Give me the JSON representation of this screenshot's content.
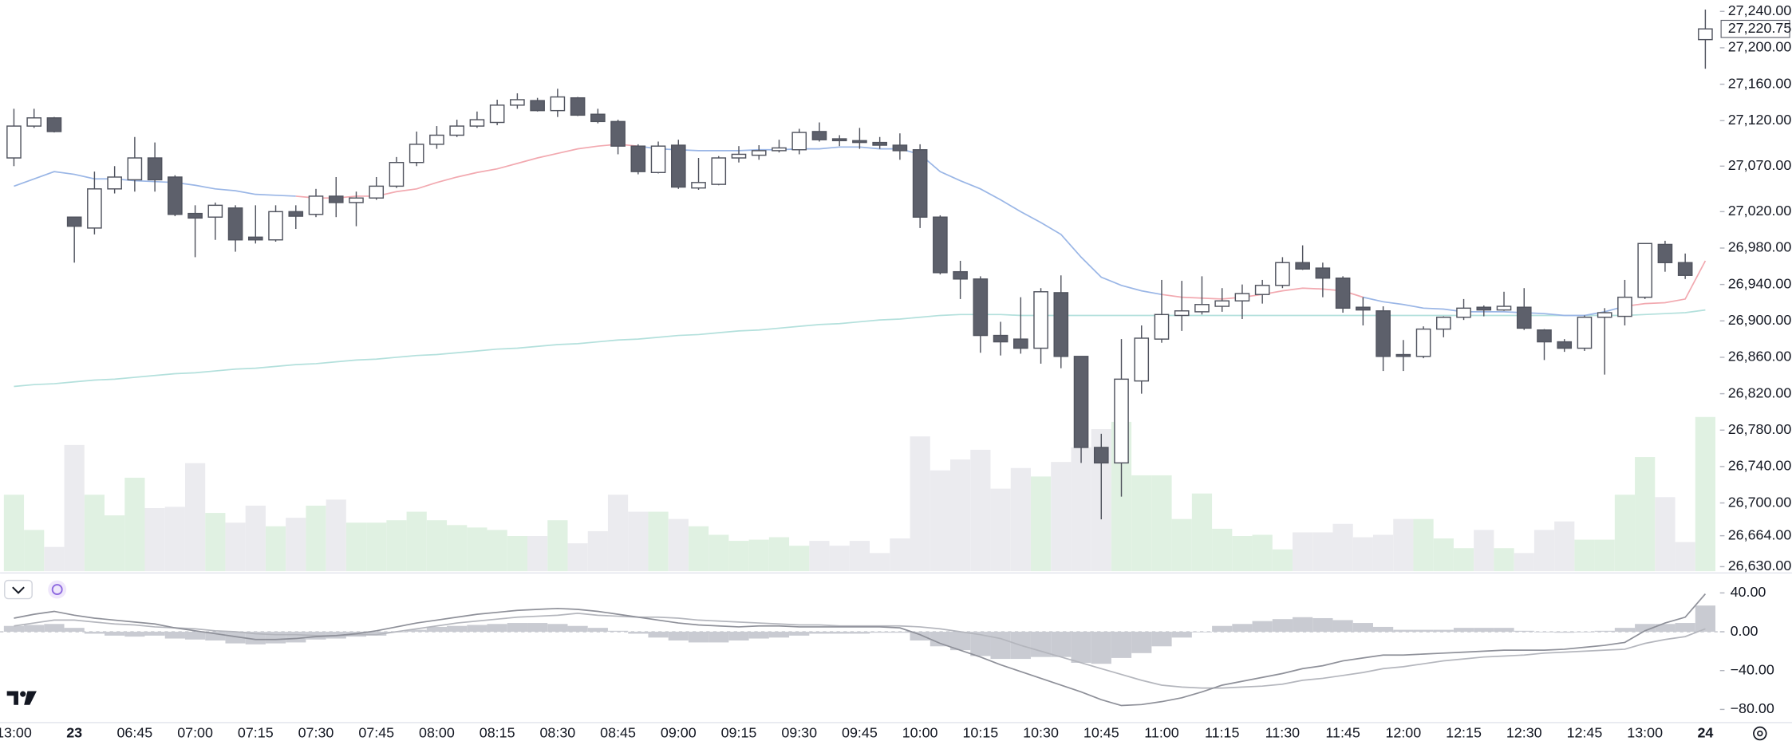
{
  "chart_data": {
    "type": "candlestick",
    "categories": [
      "13:00",
      null,
      null,
      "23",
      null,
      null,
      "06:45",
      null,
      null,
      "07:00",
      null,
      null,
      "07:15",
      null,
      null,
      "07:30",
      null,
      null,
      "07:45",
      null,
      null,
      "08:00",
      null,
      null,
      "08:15",
      null,
      null,
      "08:30",
      null,
      null,
      "08:45",
      null,
      null,
      "09:00",
      null,
      null,
      "09:15",
      null,
      null,
      "09:30",
      null,
      null,
      "09:45",
      null,
      null,
      "10:00",
      null,
      null,
      "10:15",
      null,
      null,
      "10:30",
      null,
      null,
      "10:45",
      null,
      null,
      "11:00",
      null,
      null,
      "11:15",
      null,
      null,
      "11:30",
      null,
      null,
      "11:45",
      null,
      null,
      "12:00",
      null,
      null,
      "12:15",
      null,
      null,
      "12:30",
      null,
      null,
      "12:45",
      null,
      null,
      "13:00",
      null,
      null,
      "24"
    ],
    "bold_categories": [
      "23",
      "24"
    ],
    "open": [
      27079,
      27114,
      27123,
      27014,
      27002,
      27045,
      27055,
      27079,
      27058,
      27018,
      27014,
      27024,
      26992,
      26989,
      27020,
      27017,
      27037,
      27030,
      27035,
      27048,
      27074,
      27094,
      27104,
      27114,
      27118,
      27137,
      27142,
      27131,
      27145,
      27127,
      27119,
      27092,
      27063,
      27093,
      27046,
      27050,
      27079,
      27082,
      27087,
      27088,
      27108,
      27100,
      27098,
      27096,
      27093,
      27088,
      27014,
      26954,
      26946,
      26884,
      26880,
      26870,
      26931,
      26861,
      26761,
      26744,
      26834,
      26880,
      26906,
      26910,
      26916,
      26922,
      26929,
      26939,
      26964,
      26958,
      26947,
      26915,
      26911,
      26863,
      26861,
      26891,
      26904,
      26915,
      26912,
      26915,
      26890,
      26877,
      26870,
      26904,
      26905,
      26926,
      26984,
      26964,
      27209
    ],
    "high": [
      27133,
      27133,
      27124,
      27014,
      27064,
      27070,
      27102,
      27096,
      27060,
      27027,
      27030,
      27027,
      27027,
      27027,
      27027,
      27045,
      27058,
      27042,
      27058,
      27080,
      27108,
      27114,
      27121,
      27130,
      27143,
      27150,
      27145,
      27155,
      27146,
      27133,
      27121,
      27094,
      27097,
      27099,
      27079,
      27081,
      27092,
      27093,
      27099,
      27111,
      27118,
      27104,
      27112,
      27102,
      27106,
      27094,
      27016,
      26966,
      26949,
      26899,
      26926,
      26936,
      26950,
      26861,
      26776,
      26880,
      26895,
      26945,
      26944,
      26949,
      26936,
      26940,
      26945,
      26970,
      26983,
      26964,
      26949,
      26926,
      26916,
      26879,
      26894,
      26905,
      26924,
      26917,
      26932,
      26936,
      26891,
      26880,
      26906,
      26914,
      26945,
      26985,
      26988,
      26974,
      27242
    ],
    "low": [
      27070,
      27112,
      27107,
      26964,
      26995,
      27040,
      27042,
      27042,
      27015,
      26970,
      26989,
      26976,
      26985,
      26987,
      27001,
      27014,
      27014,
      27004,
      27033,
      27046,
      27070,
      27089,
      27102,
      27112,
      27115,
      27133,
      27130,
      27124,
      27125,
      27117,
      27083,
      27061,
      27062,
      27045,
      27044,
      27049,
      27074,
      27077,
      27085,
      27083,
      27097,
      27092,
      27089,
      27089,
      27077,
      27002,
      26951,
      26924,
      26865,
      26862,
      26864,
      26853,
      26848,
      26744,
      26682,
      26707,
      26820,
      26876,
      26889,
      26907,
      26910,
      26902,
      26919,
      26936,
      26956,
      26926,
      26909,
      26895,
      26845,
      26845,
      26859,
      26882,
      26901,
      26905,
      26911,
      26890,
      26857,
      26866,
      26867,
      26841,
      26895,
      26924,
      26954,
      26946,
      27177
    ],
    "close": [
      27114,
      27123,
      27108,
      27004,
      27045,
      27058,
      27079,
      27055,
      27017,
      27013,
      27027,
      26989,
      26989,
      27020,
      27015,
      27037,
      27030,
      27035,
      27048,
      27074,
      27094,
      27104,
      27114,
      27121,
      27137,
      27143,
      27131,
      27146,
      27126,
      27119,
      27092,
      27064,
      27092,
      27047,
      27052,
      27079,
      27083,
      27087,
      27090,
      27107,
      27099,
      27098,
      27096,
      27093,
      27087,
      27014,
      26953,
      26946,
      26884,
      26877,
      26870,
      26932,
      26861,
      26761,
      26744,
      26836,
      26881,
      26907,
      26911,
      26918,
      26922,
      26930,
      26939,
      26964,
      26957,
      26947,
      26914,
      26912,
      26861,
      26861,
      26891,
      26904,
      26914,
      26912,
      26916,
      26892,
      26877,
      26870,
      26904,
      26909,
      26926,
      26985,
      26964,
      26950,
      27220.75
    ],
    "volume": [
      63,
      34,
      20,
      104,
      63,
      46,
      77,
      52,
      53,
      89,
      48,
      40,
      54,
      37,
      44,
      54,
      59,
      40,
      40,
      42,
      49,
      42,
      38,
      36,
      34,
      29,
      29,
      42,
      23,
      33,
      63,
      49,
      49,
      43,
      37,
      30,
      25,
      26,
      28,
      21,
      25,
      21,
      25,
      15,
      27,
      111,
      83,
      92,
      100,
      68,
      85,
      78,
      90,
      102,
      117,
      123,
      79,
      79,
      43,
      64,
      35,
      29,
      30,
      18,
      32,
      32,
      39,
      28,
      30,
      43,
      43,
      27,
      19,
      34,
      19,
      15,
      34,
      41,
      26,
      26,
      63,
      94,
      61,
      24,
      127
    ],
    "last_label": "27,220.75",
    "up_color": "#ffffff",
    "down_color": "#5d606b",
    "outline_color": "#50535e",
    "volume_up_color": "#e0f1e2",
    "volume_down_color": "#ebebef",
    "ylim": [
      26625,
      27252.5
    ],
    "yticks": [
      {
        "value": 27240,
        "label": "27,240.00"
      },
      {
        "value": 27200,
        "label": "27,200.00"
      },
      {
        "value": 27160,
        "label": "27,160.00"
      },
      {
        "value": 27120,
        "label": "27,120.00"
      },
      {
        "value": 27070,
        "label": "27,070.00"
      },
      {
        "value": 27020,
        "label": "27,020.00"
      },
      {
        "value": 26980,
        "label": "26,980.00"
      },
      {
        "value": 26940,
        "label": "26,940.00"
      },
      {
        "value": 26900,
        "label": "26,900.00"
      },
      {
        "value": 26860,
        "label": "26,860.00"
      },
      {
        "value": 26820,
        "label": "26,820.00"
      },
      {
        "value": 26780,
        "label": "26,780.00"
      },
      {
        "value": 26740,
        "label": "26,740.00"
      },
      {
        "value": 26700,
        "label": "26,700.00"
      },
      {
        "value": 26664,
        "label": "26,664.00"
      },
      {
        "value": 26630,
        "label": "26,630.00"
      }
    ],
    "ma": {
      "color": "#9ab6e6",
      "values": [
        27048,
        27056,
        27064,
        27061,
        27056,
        27056,
        27054,
        27053,
        27052,
        27049,
        27045,
        27043,
        27039,
        27038,
        27037,
        27035,
        27035,
        27037,
        27037,
        27042,
        27045,
        27052,
        27058,
        27063,
        27067,
        27073,
        27079,
        27084,
        27089,
        27092,
        27094,
        27092,
        27089,
        27088,
        27087,
        27087,
        27087,
        27088,
        27088,
        27089,
        27089,
        27091,
        27091,
        27089,
        27089,
        27083,
        27064,
        27054,
        27045,
        27033,
        27020,
        27008,
        26995,
        26970,
        26948,
        26939,
        26933,
        26929,
        26926,
        26925,
        26924,
        26926,
        26929,
        26933,
        26936,
        26935,
        26933,
        26926,
        26921,
        26918,
        26914,
        26913,
        26910,
        26910,
        26910,
        26909,
        26908,
        26906,
        26906,
        26910,
        26916,
        26919,
        26920,
        26924,
        26966
      ],
      "segments": [
        {
          "start": 14,
          "end": 30,
          "color": "#f2a9b0"
        },
        {
          "start": 57,
          "end": 66,
          "color": "#f2a9b0"
        },
        {
          "start": 80,
          "end": 84,
          "color": "#f2a9b0"
        }
      ]
    },
    "ma_long": {
      "color": "#b3e0dc",
      "values": [
        26828,
        26830,
        26831,
        26833,
        26835,
        26836,
        26838,
        26840,
        26842,
        26843,
        26845,
        26847,
        26848,
        26850,
        26852,
        26853,
        26855,
        26857,
        26858,
        26860,
        26862,
        26863,
        26865,
        26867,
        26869,
        26870,
        26872,
        26874,
        26875,
        26877,
        26879,
        26880,
        26882,
        26884,
        26885,
        26887,
        26889,
        26890,
        26892,
        26894,
        26896,
        26897,
        26899,
        26901,
        26902,
        26904,
        26906,
        26907,
        26907,
        26907,
        26906,
        26906,
        26906,
        26906,
        26906,
        26906,
        26906,
        26906,
        26906,
        26906,
        26906,
        26906,
        26906,
        26906,
        26906,
        26906,
        26906,
        26906,
        26906,
        26906,
        26906,
        26906,
        26906,
        26906,
        26906,
        26906,
        26906,
        26906,
        26906,
        26906,
        26906,
        26907,
        26908,
        26909,
        26912
      ]
    },
    "indicator": {
      "type": "macd",
      "macd": [
        14,
        18,
        21,
        17,
        14,
        12,
        10,
        8,
        4,
        1,
        -2,
        -5,
        -8,
        -8,
        -7,
        -5,
        -4,
        -2,
        1,
        5,
        9,
        12,
        15,
        18,
        20,
        22,
        23,
        24,
        23,
        21,
        18,
        15,
        12,
        9,
        7,
        6,
        5,
        6,
        6,
        5,
        5,
        5,
        5,
        5,
        4,
        -3,
        -12,
        -19,
        -26,
        -34,
        -41,
        -48,
        -55,
        -62,
        -70,
        -76,
        -75,
        -72,
        -68,
        -62,
        -55,
        -51,
        -47,
        -43,
        -38,
        -35,
        -30,
        -27,
        -24,
        -24,
        -23,
        -22,
        -21,
        -20,
        -19,
        -19,
        -19,
        -18,
        -16,
        -14,
        -11,
        1,
        9,
        15,
        39
      ],
      "signal": [
        6,
        9,
        12,
        12,
        10,
        8,
        7,
        5,
        4,
        3,
        1,
        0,
        -2,
        -3,
        -3,
        -4,
        -4,
        -3,
        -3,
        0,
        3,
        6,
        9,
        11,
        13,
        15,
        16,
        17,
        19,
        17,
        16,
        15,
        15,
        14,
        12,
        11,
        10,
        9,
        8,
        7,
        7,
        6,
        6,
        6,
        6,
        5,
        3,
        0,
        -3,
        -7,
        -14,
        -20,
        -26,
        -32,
        -38,
        -44,
        -50,
        -55,
        -57,
        -58,
        -58,
        -57,
        -56,
        -54,
        -50,
        -48,
        -45,
        -42,
        -38,
        -36,
        -33,
        -30,
        -28,
        -26,
        -25,
        -24,
        -22,
        -21,
        -20,
        -19,
        -18,
        -12,
        -8,
        -5,
        3
      ],
      "histogram": [
        6,
        7,
        8,
        4,
        -2,
        -4,
        -5,
        -4,
        -7,
        -8,
        -9,
        -12,
        -13,
        -12,
        -11,
        -8,
        -7,
        -5,
        -4,
        0,
        2,
        5,
        6,
        7,
        8,
        9,
        9,
        8,
        6,
        4,
        1,
        -2,
        -6,
        -9,
        -11,
        -11,
        -9,
        -7,
        -6,
        -4,
        -2,
        -2,
        -2,
        -1,
        -1,
        -9,
        -15,
        -19,
        -25,
        -28,
        -28,
        -26,
        -26,
        -32,
        -33,
        -27,
        -22,
        -15,
        -6,
        0,
        6,
        8,
        11,
        13,
        15,
        14,
        12,
        9,
        5,
        2,
        2,
        2,
        4,
        4,
        4,
        1,
        0,
        -1,
        0,
        1,
        4,
        8,
        8,
        9,
        27
      ],
      "macd_color": "#8e9099",
      "signal_color": "#b4b6bd",
      "hist_color": "#c9cbd2",
      "ylim": [
        -93,
        58.8
      ],
      "yticks": [
        {
          "value": 40,
          "label": "40.00"
        },
        {
          "value": 0,
          "label": "0.00"
        },
        {
          "value": -40,
          "label": "−40.00"
        },
        {
          "value": -80,
          "label": "−80.00"
        }
      ]
    }
  }
}
